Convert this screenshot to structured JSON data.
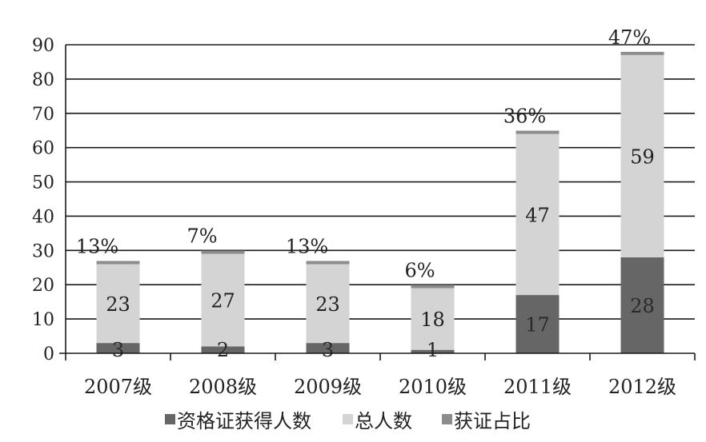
{
  "chart_data": {
    "type": "bar",
    "stacked": true,
    "categories": [
      "2007级",
      "2008级",
      "2009级",
      "2010级",
      "2011级",
      "2012级"
    ],
    "series": [
      {
        "name": "资格证获得人数",
        "values": [
          3,
          2,
          3,
          1,
          17,
          28
        ],
        "color": "#666666"
      },
      {
        "name": "总人数",
        "values": [
          23,
          27,
          23,
          18,
          47,
          59
        ],
        "color": "#d4d4d4"
      },
      {
        "name": "获证占比",
        "values": [
          "13%",
          "7%",
          "13%",
          "6%",
          "36%",
          "47%"
        ],
        "color": "#8c8c8c"
      }
    ],
    "ylim": [
      0,
      90
    ],
    "yticks": [
      0,
      10,
      20,
      30,
      40,
      50,
      60,
      70,
      80,
      90
    ],
    "grid": true,
    "legend": "bottom",
    "title": "",
    "xlabel": "",
    "ylabel": ""
  }
}
